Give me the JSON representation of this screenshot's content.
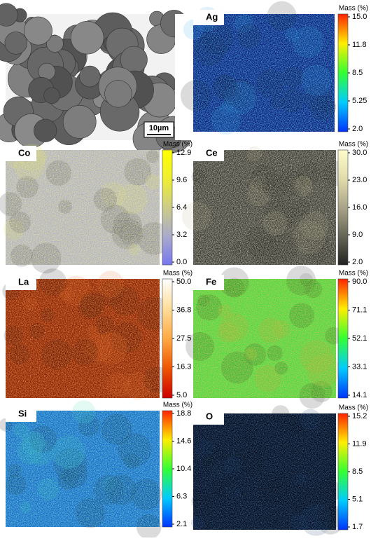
{
  "sem": {
    "scale_bar": "10µm"
  },
  "maps": [
    {
      "element": "Ag",
      "unit_label": "Mass (%)",
      "ticks": [
        "15.0",
        "11.8",
        "8.5",
        "5.25",
        "2.0"
      ],
      "colors": [
        "#0033ff",
        "#00ccff",
        "#33ff33",
        "#ffee00",
        "#ff2200"
      ]
    },
    {
      "element": "Co",
      "unit_label": "Mass (%)",
      "ticks": [
        "12.9",
        "9.6",
        "6.4",
        "3.2",
        "0.0"
      ],
      "colors": [
        "#7777ee",
        "#aaaacc",
        "#cccc88",
        "#eeee33",
        "#ffff00"
      ]
    },
    {
      "element": "Ce",
      "unit_label": "Mass (%)",
      "ticks": [
        "30.0",
        "23.0",
        "16.0",
        "9.0",
        "2.0"
      ],
      "colors": [
        "#222222",
        "#666655",
        "#aaa488",
        "#e0dcaa",
        "#fffccc"
      ]
    },
    {
      "element": "La",
      "unit_label": "Mass (%)",
      "ticks": [
        "50.0",
        "36.8",
        "27.5",
        "16.3",
        "5.0"
      ],
      "colors": [
        "#cc0000",
        "#ee5500",
        "#ffaa44",
        "#ffdd99",
        "#ffffff"
      ]
    },
    {
      "element": "Fe",
      "unit_label": "Mass (%)",
      "ticks": [
        "90.0",
        "71.1",
        "52.1",
        "33.1",
        "14.1"
      ],
      "colors": [
        "#0033ff",
        "#00ccff",
        "#33ff33",
        "#ffee00",
        "#ff2200"
      ]
    },
    {
      "element": "Si",
      "unit_label": "Mass (%)",
      "ticks": [
        "18.8",
        "14.6",
        "10.4",
        "6.3",
        "2.1"
      ],
      "colors": [
        "#0033ff",
        "#00ccff",
        "#33ff33",
        "#ffee00",
        "#ff2200"
      ]
    },
    {
      "element": "O",
      "unit_label": "Mass (%)",
      "ticks": [
        "15.2",
        "11.9",
        "8.5",
        "5.1",
        "1.7"
      ],
      "colors": [
        "#0033ff",
        "#00ccff",
        "#33ff33",
        "#ffee00",
        "#ff2200"
      ]
    }
  ]
}
